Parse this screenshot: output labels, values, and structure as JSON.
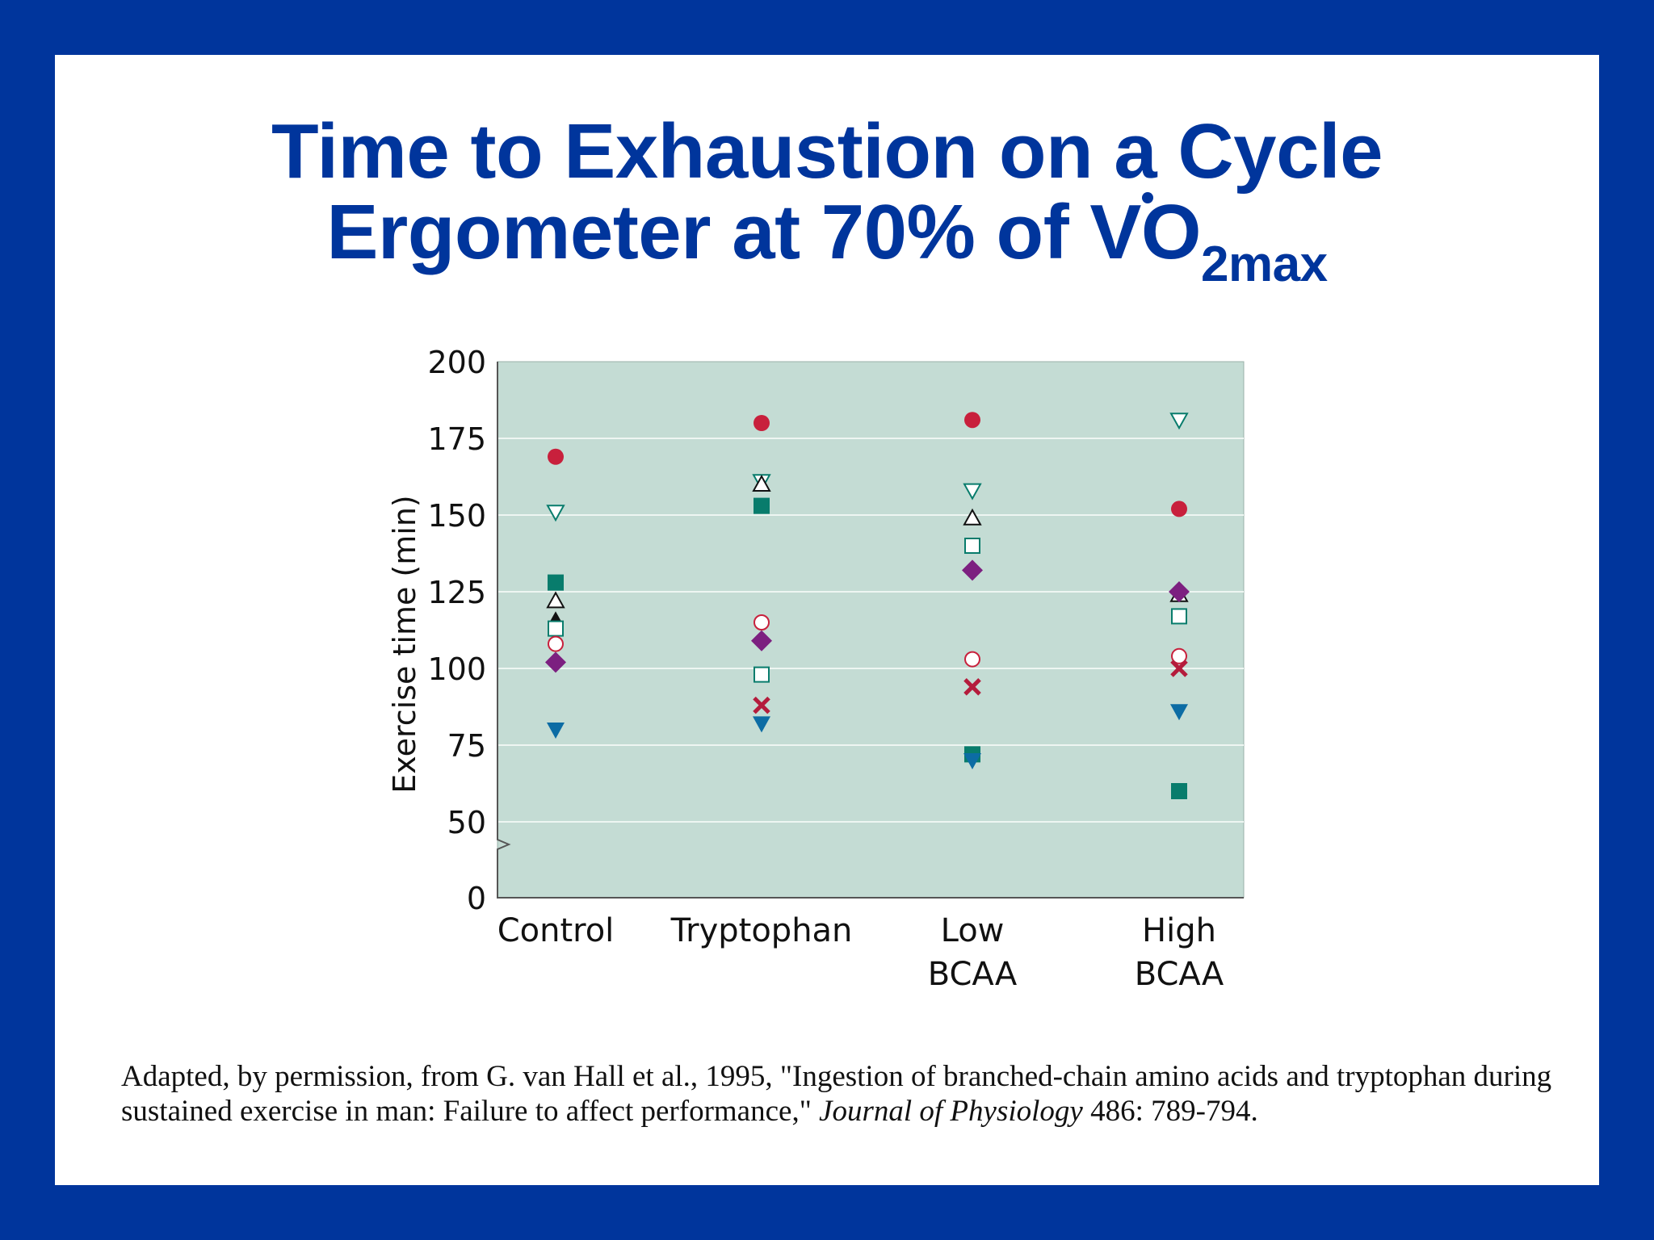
{
  "title": {
    "line1": "Time to Exhaustion on a Cycle",
    "line2_prefix": "Ergometer at 70% of ",
    "line2_symbol": "VO",
    "line2_subscript": "2max"
  },
  "chart_data": {
    "type": "scatter",
    "ylabel": "Exercise time (min)",
    "xlabel": "",
    "categories": [
      "Control",
      "Tryptophan",
      "Low BCAA",
      "High BCAA"
    ],
    "category_labels": [
      [
        "Control"
      ],
      [
        "Tryptophan"
      ],
      [
        "Low",
        "BCAA"
      ],
      [
        "High",
        "BCAA"
      ]
    ],
    "y_ticks": [
      0,
      50,
      75,
      100,
      125,
      150,
      175,
      200
    ],
    "ylim": [
      0,
      200
    ],
    "axis_break": true,
    "grid": true,
    "colors": {
      "plot_background": "#c4dcd4",
      "red_circle": "#c8203c",
      "teal_square": "#087c6c",
      "purple_diamond": "#7c2080",
      "blue_triangle": "#0c6ca4",
      "red_x": "#b41c3c",
      "open_fill": "#ffffff"
    },
    "series": [
      {
        "marker": "filled-circle",
        "color": "red_circle",
        "values": [
          169,
          180,
          181,
          152
        ]
      },
      {
        "marker": "open-triangle-down",
        "color": "teal_square",
        "values": [
          151,
          161,
          158,
          181
        ]
      },
      {
        "marker": "filled-square",
        "color": "teal_square",
        "values": [
          128,
          153,
          72,
          60
        ]
      },
      {
        "marker": "open-triangle-up",
        "color": "black",
        "values": [
          122,
          160,
          149,
          124
        ]
      },
      {
        "marker": "filled-triangle-up",
        "color": "black",
        "values": [
          116,
          null,
          null,
          null
        ]
      },
      {
        "marker": "open-square",
        "color": "teal_square",
        "values": [
          113,
          98,
          140,
          117
        ]
      },
      {
        "marker": "open-circle",
        "color": "red_circle",
        "values": [
          108,
          115,
          103,
          104
        ]
      },
      {
        "marker": "filled-diamond",
        "color": "purple_diamond",
        "values": [
          102,
          109,
          132,
          125
        ]
      },
      {
        "marker": "x",
        "color": "red_x",
        "values": [
          null,
          88,
          94,
          100
        ]
      },
      {
        "marker": "filled-triangle-down",
        "color": "blue_triangle",
        "values": [
          80,
          82,
          70,
          86
        ]
      }
    ]
  },
  "citation": {
    "text_before": "Adapted, by permission, from G. van Hall et al., 1995, \"Ingestion of branched-chain amino acids and tryptophan during sustained exercise in man: Failure to affect performance,\" ",
    "journal": "Journal of Physiology",
    "text_after": " 486: 789-794."
  }
}
